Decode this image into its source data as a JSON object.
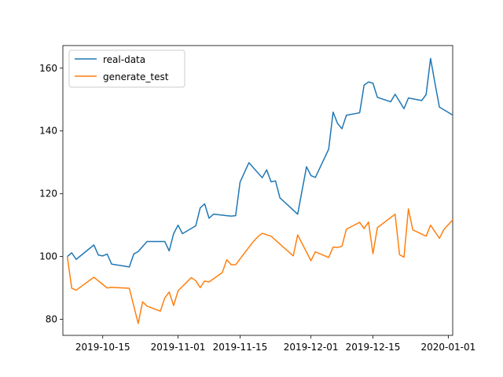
{
  "chart_data": {
    "type": "line",
    "title": "",
    "xlabel": "",
    "ylabel": "",
    "xlim": [
      "2019-10-06",
      "2020-01-02"
    ],
    "ylim": [
      74.9,
      167.2
    ],
    "grid": false,
    "legend": "upper-left",
    "x_tick_labels": [
      "2019-10-15",
      "2019-11-01",
      "2019-11-15",
      "2019-12-01",
      "2019-12-15",
      "2020-01-01"
    ],
    "y_tick_labels": [
      "80",
      "100",
      "120",
      "140",
      "160"
    ],
    "x_ticks": [
      "2019-10-15",
      "2019-11-01",
      "2019-11-15",
      "2019-12-01",
      "2019-12-15",
      "2020-01-01"
    ],
    "y_ticks": [
      80,
      100,
      120,
      140,
      160
    ],
    "series": [
      {
        "name": "real-data",
        "color": "#1f77b4",
        "points": [
          [
            "2019-10-07",
            100.0
          ],
          [
            "2019-10-08",
            101.2
          ],
          [
            "2019-10-09",
            99.1
          ],
          [
            "2019-10-13",
            103.7
          ],
          [
            "2019-10-14",
            100.5
          ],
          [
            "2019-10-15",
            100.2
          ],
          [
            "2019-10-16",
            100.8
          ],
          [
            "2019-10-17",
            97.6
          ],
          [
            "2019-10-21",
            96.7
          ],
          [
            "2019-10-22",
            100.8
          ],
          [
            "2019-10-23",
            101.6
          ],
          [
            "2019-10-25",
            104.8
          ],
          [
            "2019-10-29",
            104.8
          ],
          [
            "2019-10-30",
            101.8
          ],
          [
            "2019-10-31",
            107.3
          ],
          [
            "2019-11-01",
            110.0
          ],
          [
            "2019-11-02",
            107.3
          ],
          [
            "2019-11-05",
            109.8
          ],
          [
            "2019-11-06",
            115.5
          ],
          [
            "2019-11-07",
            116.8
          ],
          [
            "2019-11-08",
            112.2
          ],
          [
            "2019-11-09",
            113.5
          ],
          [
            "2019-11-12",
            113.0
          ],
          [
            "2019-11-13",
            112.9
          ],
          [
            "2019-11-14",
            113.0
          ],
          [
            "2019-11-15",
            123.7
          ],
          [
            "2019-11-17",
            129.9
          ],
          [
            "2019-11-20",
            125.1
          ],
          [
            "2019-11-21",
            127.6
          ],
          [
            "2019-11-22",
            123.8
          ],
          [
            "2019-11-23",
            124.1
          ],
          [
            "2019-11-24",
            118.7
          ],
          [
            "2019-11-28",
            113.5
          ],
          [
            "2019-11-30",
            128.6
          ],
          [
            "2019-12-01",
            125.8
          ],
          [
            "2019-12-02",
            125.2
          ],
          [
            "2019-12-05",
            134.2
          ],
          [
            "2019-12-06",
            146.0
          ],
          [
            "2019-12-07",
            142.4
          ],
          [
            "2019-12-08",
            140.7
          ],
          [
            "2019-12-09",
            145.0
          ],
          [
            "2019-12-12",
            145.8
          ],
          [
            "2019-12-13",
            154.6
          ],
          [
            "2019-12-14",
            155.6
          ],
          [
            "2019-12-15",
            155.2
          ],
          [
            "2019-12-16",
            150.7
          ],
          [
            "2019-12-19",
            149.3
          ],
          [
            "2019-12-20",
            151.7
          ],
          [
            "2019-12-22",
            147.1
          ],
          [
            "2019-12-23",
            150.5
          ],
          [
            "2019-12-26",
            149.7
          ],
          [
            "2019-12-27",
            151.6
          ],
          [
            "2019-12-28",
            163.1
          ],
          [
            "2019-12-29",
            155.2
          ],
          [
            "2019-12-30",
            147.6
          ],
          [
            "2020-01-03",
            144.2
          ],
          [
            "2020-01-04",
            143.4
          ]
        ]
      },
      {
        "name": "generate_test",
        "color": "#ff7f0e",
        "points": [
          [
            "2019-10-07",
            100.0
          ],
          [
            "2019-10-08",
            89.9
          ],
          [
            "2019-10-09",
            89.3
          ],
          [
            "2019-10-13",
            93.4
          ],
          [
            "2019-10-16",
            90.0
          ],
          [
            "2019-10-17",
            90.2
          ],
          [
            "2019-10-21",
            89.9
          ],
          [
            "2019-10-23",
            78.7
          ],
          [
            "2019-10-24",
            85.6
          ],
          [
            "2019-10-25",
            84.2
          ],
          [
            "2019-10-28",
            82.6
          ],
          [
            "2019-10-29",
            86.8
          ],
          [
            "2019-10-30",
            88.7
          ],
          [
            "2019-10-31",
            84.4
          ],
          [
            "2019-11-01",
            89.1
          ],
          [
            "2019-11-04",
            93.3
          ],
          [
            "2019-11-05",
            92.3
          ],
          [
            "2019-11-06",
            90.1
          ],
          [
            "2019-11-07",
            92.2
          ],
          [
            "2019-11-08",
            91.9
          ],
          [
            "2019-11-11",
            94.9
          ],
          [
            "2019-11-12",
            99.0
          ],
          [
            "2019-11-13",
            97.4
          ],
          [
            "2019-11-14",
            97.4
          ],
          [
            "2019-11-18",
            104.8
          ],
          [
            "2019-11-19",
            106.3
          ],
          [
            "2019-11-20",
            107.4
          ],
          [
            "2019-11-22",
            106.5
          ],
          [
            "2019-11-27",
            100.2
          ],
          [
            "2019-11-28",
            106.9
          ],
          [
            "2019-12-01",
            98.7
          ],
          [
            "2019-12-02",
            101.5
          ],
          [
            "2019-12-05",
            99.7
          ],
          [
            "2019-12-06",
            103.0
          ],
          [
            "2019-12-07",
            102.9
          ],
          [
            "2019-12-08",
            103.3
          ],
          [
            "2019-12-09",
            108.7
          ],
          [
            "2019-12-12",
            110.9
          ],
          [
            "2019-12-13",
            108.9
          ],
          [
            "2019-12-14",
            111.0
          ],
          [
            "2019-12-15",
            100.9
          ],
          [
            "2019-12-16",
            109.2
          ],
          [
            "2019-12-20",
            113.5
          ],
          [
            "2019-12-21",
            100.6
          ],
          [
            "2019-12-22",
            99.8
          ],
          [
            "2019-12-23",
            115.2
          ],
          [
            "2019-12-24",
            108.5
          ],
          [
            "2019-12-27",
            106.5
          ],
          [
            "2019-12-28",
            110.0
          ],
          [
            "2019-12-30",
            105.8
          ],
          [
            "2019-12-31",
            108.6
          ],
          [
            "2020-01-03",
            113.2
          ],
          [
            "2020-01-04",
            107.5
          ]
        ]
      }
    ],
    "colors": {
      "axes": "#000000",
      "legend_frame": "#cccccc",
      "background": "#ffffff"
    }
  }
}
